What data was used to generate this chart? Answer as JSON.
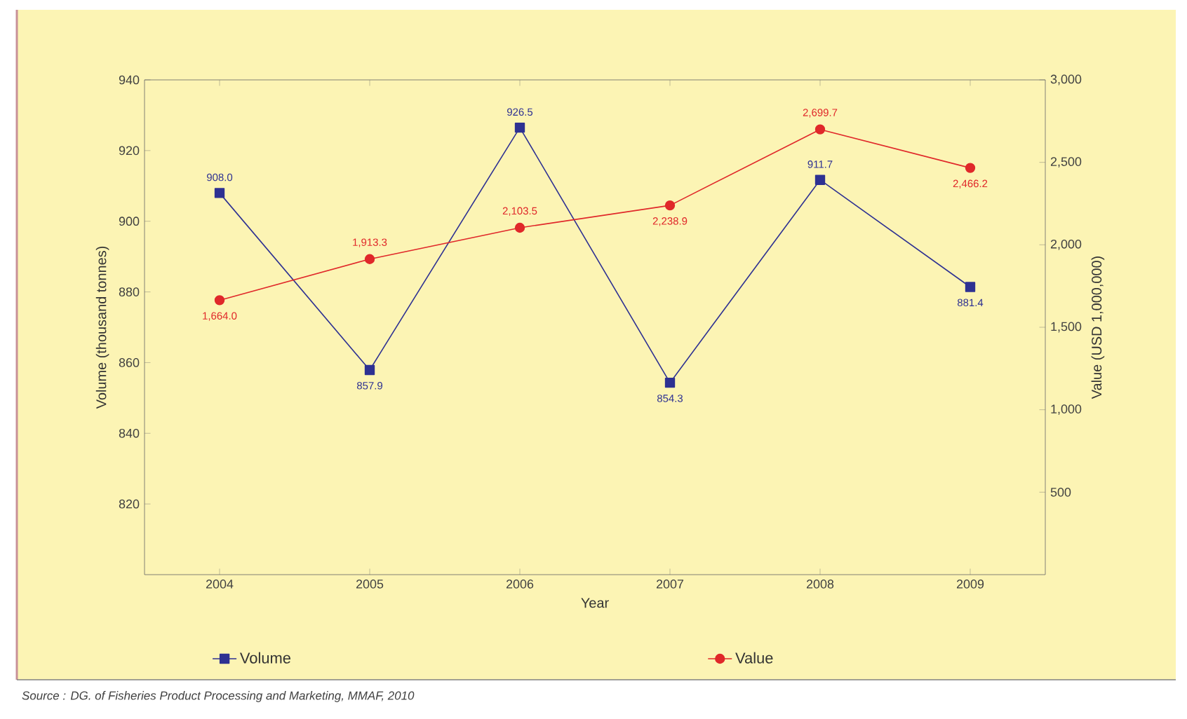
{
  "chart_data": {
    "type": "line",
    "xlabel": "Year",
    "ylabel": "Volume (thousand tonnes)",
    "y2label": "Value (USD 1,000,000)",
    "categories": [
      "2004",
      "2005",
      "2006",
      "2007",
      "2008",
      "2009"
    ],
    "series": [
      {
        "name": "Volume",
        "color": "#2e3192",
        "marker": "square",
        "values": [
          908.0,
          857.9,
          926.5,
          854.3,
          911.7,
          881.4
        ],
        "value_labels": [
          "908.0",
          "857.9",
          "926.5",
          "854.3",
          "911.7",
          "881.4"
        ]
      },
      {
        "name": "Value",
        "color": "#e0282a",
        "marker": "circle",
        "axis": "y2",
        "values": [
          1664.0,
          1913.3,
          2103.5,
          2238.9,
          2699.7,
          2466.2
        ],
        "value_labels": [
          "1,664.0",
          "1,913.3",
          "2,103.5",
          "2,238.9",
          "2,699.7",
          "2,466.2"
        ]
      }
    ],
    "ylim": [
      800,
      940
    ],
    "yticks": [
      820,
      840,
      860,
      880,
      900,
      920,
      940
    ],
    "y2lim": [
      0,
      3000
    ],
    "y2ticks": [
      {
        "value": 500,
        "label": "500"
      },
      {
        "value": 1000,
        "label": "1,000"
      },
      {
        "value": 1500,
        "label": "1,500"
      },
      {
        "value": 2000,
        "label": "2,000"
      },
      {
        "value": 2500,
        "label": "2,500"
      },
      {
        "value": 3000,
        "label": "3,000"
      }
    ],
    "legend": "bottom",
    "annotations": [
      "Source : DG. of Fisheries Product Processing and Marketing, MMAF, 2010"
    ]
  }
}
